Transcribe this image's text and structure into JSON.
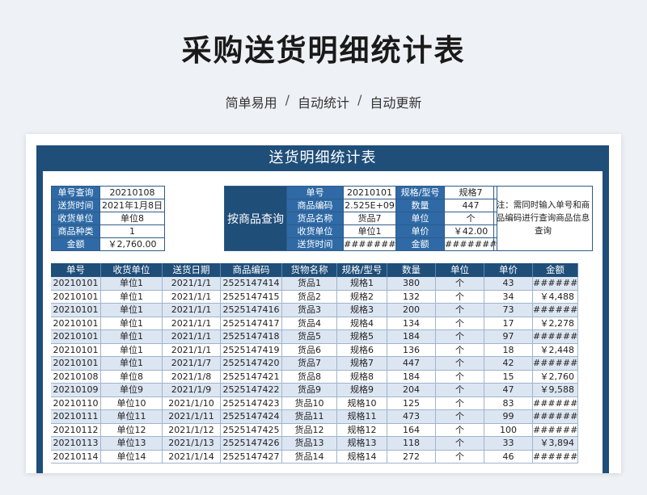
{
  "headline": "采购送货明细统计表",
  "subtitle": {
    "items": [
      "简单易用",
      "自动统计",
      "自动更新"
    ],
    "separator": "/"
  },
  "sheet": {
    "title": "送货明细统计表",
    "order_lookup": [
      {
        "label": "单号查询",
        "value": "20210108"
      },
      {
        "label": "送货时间",
        "value": "2021年1月8日"
      },
      {
        "label": "收货单位",
        "value": "单位8"
      },
      {
        "label": "商品种类",
        "value": "1"
      },
      {
        "label": "金额",
        "value": "￥2,760.00"
      }
    ],
    "product_lookup_label": "按商品查询",
    "product_lookup": [
      [
        "单号",
        "20210101",
        "规格/型号",
        "规格7"
      ],
      [
        "商品编码",
        "2.525E+09",
        "数量",
        "447"
      ],
      [
        "货品名称",
        "货品7",
        "单位",
        "个"
      ],
      [
        "收货单位",
        "单位1",
        "单价",
        "￥42.00"
      ],
      [
        "送货时间",
        "#########",
        "金额",
        "#########"
      ]
    ],
    "note": "注：需同时输入单号和商品编码进行查询商品信息查询",
    "columns": [
      "单号",
      "收货单位",
      "送货日期",
      "商品编码",
      "货物名称",
      "规格/型号",
      "数量",
      "单位",
      "单价",
      "金额"
    ],
    "rows": [
      [
        "20210101",
        "单位1",
        "2021/1/1",
        "2525147414",
        "货品1",
        "规格1",
        "380",
        "个",
        "43",
        "#######"
      ],
      [
        "20210101",
        "单位1",
        "2021/1/1",
        "2525147415",
        "货品2",
        "规格2",
        "132",
        "个",
        "34",
        "￥4,488"
      ],
      [
        "20210101",
        "单位1",
        "2021/1/1",
        "2525147416",
        "货品3",
        "规格3",
        "200",
        "个",
        "73",
        "#######"
      ],
      [
        "20210101",
        "单位1",
        "2021/1/1",
        "2525147417",
        "货品4",
        "规格4",
        "134",
        "个",
        "17",
        "￥2,278"
      ],
      [
        "20210101",
        "单位1",
        "2021/1/1",
        "2525147418",
        "货品5",
        "规格5",
        "184",
        "个",
        "97",
        "#######"
      ],
      [
        "20210101",
        "单位1",
        "2021/1/1",
        "2525147419",
        "货品6",
        "规格6",
        "136",
        "个",
        "18",
        "￥2,448"
      ],
      [
        "20210101",
        "单位1",
        "2021/1/7",
        "2525147420",
        "货品7",
        "规格7",
        "447",
        "个",
        "42",
        "#######"
      ],
      [
        "20210108",
        "单位8",
        "2021/1/8",
        "2525147421",
        "货品8",
        "规格8",
        "184",
        "个",
        "15",
        "￥2,760"
      ],
      [
        "20210109",
        "单位9",
        "2021/1/9",
        "2525147422",
        "货品9",
        "规格9",
        "204",
        "个",
        "47",
        "￥9,588"
      ],
      [
        "20210110",
        "单位10",
        "2021/1/10",
        "2525147423",
        "货品10",
        "规格10",
        "125",
        "个",
        "83",
        "#######"
      ],
      [
        "20210111",
        "单位11",
        "2021/1/11",
        "2525147424",
        "货品11",
        "规格11",
        "473",
        "个",
        "99",
        "#######"
      ],
      [
        "20210112",
        "单位12",
        "2021/1/12",
        "2525147425",
        "货品12",
        "规格12",
        "164",
        "个",
        "100",
        "#######"
      ],
      [
        "20210113",
        "单位13",
        "2021/1/13",
        "2525147426",
        "货品13",
        "规格13",
        "118",
        "个",
        "33",
        "￥3,894"
      ],
      [
        "20210114",
        "单位14",
        "2021/1/14",
        "2525147427",
        "货品14",
        "规格14",
        "272",
        "个",
        "46",
        "#######"
      ]
    ]
  }
}
